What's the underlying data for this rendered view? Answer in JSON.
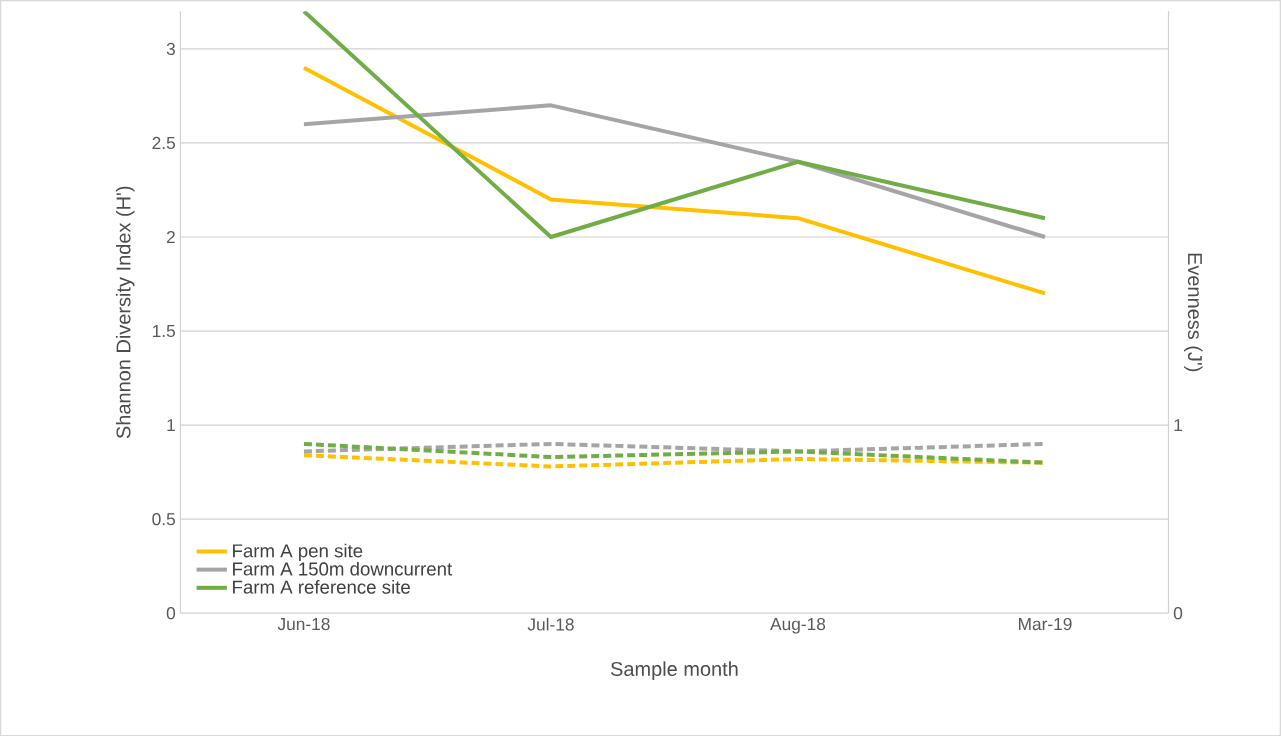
{
  "chart_data": {
    "type": "line",
    "xlabel": "Sample month",
    "ylabel": "Shannon Diversity Index (H')",
    "y2label": "Evenness (J')",
    "categories": [
      "Jun-18",
      "Jul-18",
      "Aug-18",
      "Mar-19"
    ],
    "series": [
      {
        "name": "Farm A pen site",
        "color": "#ffc000",
        "values": [
          2.9,
          2.2,
          2.1,
          1.7
        ],
        "line_style": "solid"
      },
      {
        "name": "Farm A 150m downcurrent",
        "color": "#a5a5a5",
        "values": [
          2.6,
          2.7,
          2.4,
          2.0
        ],
        "line_style": "solid"
      },
      {
        "name": "Farm A reference site",
        "color": "#70ad47",
        "values": [
          3.2,
          2.0,
          2.4,
          2.1
        ],
        "line_style": "solid"
      },
      {
        "color": "#ffc000",
        "values": [
          0.84,
          0.78,
          0.82,
          0.8
        ],
        "line_style": "dashed",
        "axis": "y2"
      },
      {
        "color": "#a5a5a5",
        "values": [
          0.86,
          0.9,
          0.86,
          0.9
        ],
        "line_style": "dashed",
        "axis": "y2"
      },
      {
        "color": "#70ad47",
        "values": [
          0.9,
          0.83,
          0.86,
          0.8
        ],
        "line_style": "dashed",
        "axis": "y2"
      }
    ],
    "ylim": [
      0,
      3.2
    ],
    "yticks": [
      0,
      0.5,
      1,
      1.5,
      2,
      2.5,
      3
    ],
    "y2lim": [
      0,
      3.2
    ],
    "y2ticks": [
      0,
      1
    ],
    "grid": "y",
    "legend": "bottom left"
  }
}
